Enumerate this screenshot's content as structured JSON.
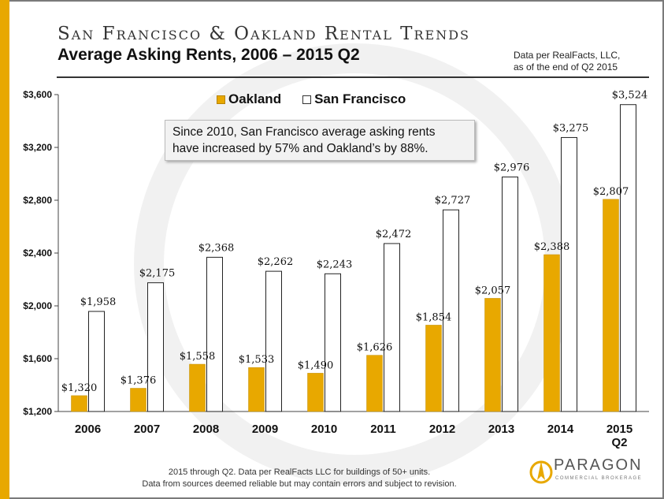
{
  "title": "San Francisco & Oakland Rental Trends",
  "subtitle": "Average Asking Rents, 2006 – 2015 Q2",
  "source_note": [
    "Data per RealFacts, LLC,",
    "as of the end of Q2 2015"
  ],
  "callout": [
    "Since 2010, San Francisco average asking rents",
    "have increased by 57% and Oakland’s by 88%."
  ],
  "footnote": [
    "2015 through Q2. Data per RealFacts LLC for buildings of 50+ units.",
    "Data from sources deemed reliable but may contain errors and subject to revision."
  ],
  "logo": {
    "name": "PARAGON",
    "tagline": "COMMERCIAL BROKERAGE"
  },
  "colors": {
    "oakland": "#e8a800",
    "san_francisco": "#ffffff",
    "accent": "#e8a800"
  },
  "chart_data": {
    "type": "bar",
    "categories": [
      "2006",
      "2007",
      "2008",
      "2009",
      "2010",
      "2011",
      "2012",
      "2013",
      "2014",
      "2015\nQ2"
    ],
    "series": [
      {
        "name": "Oakland",
        "values": [
          1320,
          1376,
          1558,
          1533,
          1490,
          1626,
          1854,
          2057,
          2388,
          2807
        ],
        "labels": [
          "$1,320",
          "$1,376",
          "$1,558",
          "$1,533",
          "$1,490",
          "$1,626",
          "$1,854",
          "$2,057",
          "$2,388",
          "$2,807"
        ]
      },
      {
        "name": "San Francisco",
        "values": [
          1958,
          2175,
          2368,
          2262,
          2243,
          2472,
          2727,
          2976,
          3275,
          3524
        ],
        "labels": [
          "$1,958",
          "$2,175",
          "$2,368",
          "$2,262",
          "$2,243",
          "$2,472",
          "$2,727",
          "$2,976",
          "$3,275",
          "$3,524"
        ]
      }
    ],
    "ylim": [
      1200,
      3600
    ],
    "yticks": [
      1200,
      1600,
      2000,
      2400,
      2800,
      3200,
      3600
    ],
    "ytick_labels": [
      "$1,200",
      "$1,600",
      "$2,000",
      "$2,400",
      "$2,800",
      "$3,200",
      "$3,600"
    ],
    "legend": "top-center",
    "grid": false
  }
}
